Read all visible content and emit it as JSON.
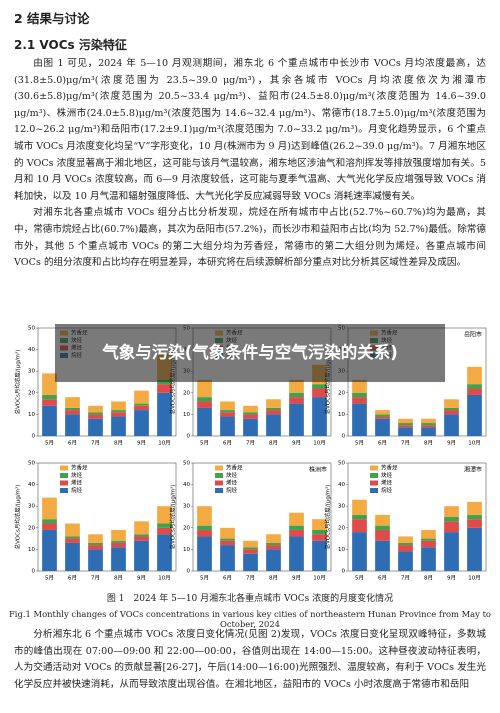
{
  "section_heading": "2 结果与讨论",
  "subsection_heading": "2.1 VOCs 污染特征",
  "paragraphs": [
    "由图 1 可见，2024 年 5—10 月观测期间，湘东北 6 个重点城市中长沙市 VOCs 月均浓度最高，达(31.8±5.0)μg/m³(浓度范围为 23.5~39.0 μg/m³)，其余各城市 VOCs 月均浓度依次为湘潭市(30.6±5.8)μg/m³(浓度范围为 20.5~33.4 μg/m³)、益阳市(24.5±8.0)μg/m³(浓度范围为 14.6~39.0 μg/m³)、株洲市(24.0±5.8)μg/m³(浓度范围为 14.6~32.4 μg/m³)、常德市(18.7±5.0)μg/m³(浓度范围为 12.0~26.2 μg/m³)和岳阳市(17.2±9.1)μg/m³(浓度范围为 7.0~33.2 μg/m³)。月变化趋势显示，6 个重点城市 VOCs 月浓度变化均呈“V”字形变化，10 月(株洲市为 9 月)达到峰值(26.2~39.0 μg/m³)。7 月湘东地区的 VOCs 浓度显著高于湘北地区，这可能与该月气温较高，湘东地区涉油气和溶剂挥发等排放强度增加有关。5 月和 10 月 VOCs 浓度较高，而 6—9 月浓度较低，这可能与夏季气温高、大气光化学反应增强导致 VOCs 消耗加快，以及 10 月气温和辐射强度降低、大气光化学反应减弱导致 VOCs 消耗速率减慢有关。",
    "对湘东北各重点城市 VOCs 组分占比分析发现，烷烃在所有城市中占比(52.7%~60.7%)均为最高，其中，常德市烷烃占比(60.7%)最高，其次为岳阳市(57.2%)，而长沙市和益阳市占比(均为 52.7%)最低。除常德市外，其他 5 个重点城市 VOCs 的第二大组分均为芳香烃，常德市的第二大组分则为烯烃。各重点城市间 VOCs 的组分浓度和占比均存在明显差异，本研究将在后续源解析部分重点对比分析其区域性差异及成因。",
    "分析湘东北 6 个重点城市 VOCs 浓度日变化情况(见图 2)发现，VOCs 浓度日变化呈现双峰特征，多数城市的峰值出现在 07:00—09:00 和 22:00—00:00，谷值则出现在 14:00—15:00。这种昼夜波动特征表明，人为交通活动对 VOCs 的贡献显著[26-27]，午后(14:00—16:00)光照强烈、温度较高，有利于 VOCs 发生光化学反应并被快速消耗，从而导致浓度出现谷值。在湘北地区，益阳市的 VOCs 小时浓度高于常德市和岳阳"
  ],
  "figure": {
    "y_label": "总VOCs月均浓度/(μg/m³)",
    "categories": [
      "5月",
      "6月",
      "7月",
      "8月",
      "9月",
      "10月"
    ],
    "ylim": [
      0,
      50
    ],
    "yticks": [
      0,
      10,
      20,
      30,
      40,
      50
    ],
    "series": [
      {
        "name": "烷烃",
        "color": "#2e6db4"
      },
      {
        "name": "烯烃",
        "color": "#e04a4a"
      },
      {
        "name": "炔烃",
        "color": "#3fa34d"
      },
      {
        "name": "芳香烃",
        "color": "#f4aa42"
      }
    ],
    "panels": [
      {
        "values": [
          [
            14,
            10,
            8,
            9,
            12,
            20
          ],
          [
            3,
            2,
            2,
            2,
            2,
            4
          ],
          [
            2,
            1,
            1,
            1,
            1,
            2
          ],
          [
            10,
            5,
            3,
            4,
            6,
            12
          ]
        ]
      },
      {
        "values": [
          [
            13,
            9,
            8,
            10,
            15,
            18
          ],
          [
            3,
            2,
            2,
            2,
            3,
            4
          ],
          [
            2,
            1,
            1,
            1,
            2,
            2
          ],
          [
            8,
            4,
            3,
            4,
            6,
            9
          ]
        ]
      },
      {
        "label": "岳阳市",
        "values": [
          [
            15,
            8,
            4,
            4,
            10,
            19
          ],
          [
            3,
            1,
            1,
            1,
            2,
            3
          ],
          [
            2,
            1,
            1,
            1,
            1,
            2
          ],
          [
            6,
            2,
            2,
            2,
            4,
            8
          ]
        ]
      },
      {
        "values": [
          [
            19,
            13,
            10,
            11,
            14,
            17
          ],
          [
            3,
            2,
            2,
            2,
            2,
            3
          ],
          [
            2,
            1,
            1,
            1,
            1,
            2
          ],
          [
            10,
            6,
            4,
            5,
            6,
            8
          ]
        ]
      },
      {
        "label": "株洲市",
        "values": [
          [
            16,
            12,
            8,
            10,
            16,
            14
          ],
          [
            3,
            2,
            2,
            2,
            3,
            3
          ],
          [
            2,
            1,
            1,
            1,
            2,
            2
          ],
          [
            9,
            5,
            3,
            4,
            6,
            5
          ]
        ]
      },
      {
        "label": "湘潭市",
        "values": [
          [
            18,
            14,
            9,
            11,
            18,
            20
          ],
          [
            6,
            5,
            3,
            3,
            5,
            4
          ],
          [
            2,
            2,
            1,
            1,
            2,
            2
          ],
          [
            7,
            5,
            3,
            4,
            5,
            6
          ]
        ]
      }
    ],
    "caption_cn": "图 1　2024 年 5—10 月湘东北各重点城市 VOCs 浓度的月度变化情况",
    "caption_en": "Fig.1 Monthly changes of VOCs concentrations in various key cities of northeastern Hunan Province from May to October, 2024"
  },
  "overlay_title": "气象与污染(气象条件与空气污染的关系)"
}
